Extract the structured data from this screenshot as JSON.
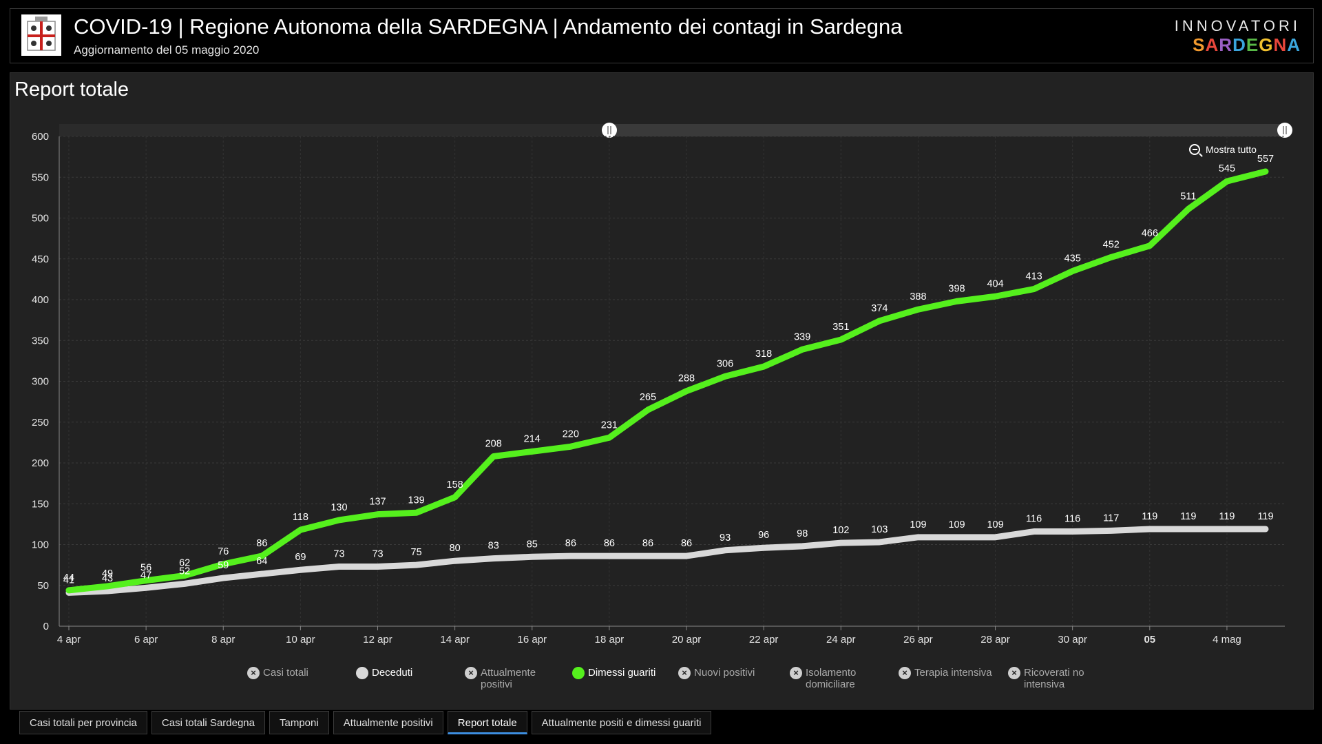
{
  "header": {
    "title": "COVID-19 | Regione Autonoma della SARDEGNA | Andamento dei contagi in Sardegna",
    "subtitle": "Aggiornamento del 05 maggio 2020",
    "brand_top": "INNOVATORI",
    "brand_bottom": "SARDEGNA",
    "brand_colors": [
      "#f29a2e",
      "#e8473b",
      "#9a5fc4",
      "#3aa5dc",
      "#58b947",
      "#f2c12e",
      "#e8473b",
      "#3aa5dc"
    ]
  },
  "panel": {
    "title": "Report totale"
  },
  "zoom": {
    "show_all_label": "Mostra tutto"
  },
  "chart_data": {
    "type": "line",
    "x": [
      "4 apr",
      "5 apr",
      "6 apr",
      "7 apr",
      "8 apr",
      "9 apr",
      "10 apr",
      "11 apr",
      "12 apr",
      "13 apr",
      "14 apr",
      "15 apr",
      "16 apr",
      "17 apr",
      "18 apr",
      "19 apr",
      "20 apr",
      "21 apr",
      "22 apr",
      "23 apr",
      "24 apr",
      "25 apr",
      "26 apr",
      "27 apr",
      "28 apr",
      "29 apr",
      "30 apr",
      "1 mag",
      "2 mag",
      "3 mag",
      "4 mag",
      "5 mag"
    ],
    "x_tick_labels": [
      "4 apr",
      "6 apr",
      "8 apr",
      "10 apr",
      "12 apr",
      "14 apr",
      "16 apr",
      "18 apr",
      "20 apr",
      "22 apr",
      "24 apr",
      "26 apr",
      "28 apr",
      "30 apr",
      "05",
      "4 mag"
    ],
    "ylim": [
      0,
      600
    ],
    "y_ticks": [
      0,
      50,
      100,
      150,
      200,
      250,
      300,
      350,
      400,
      450,
      500,
      550,
      600
    ],
    "grid": true,
    "series": [
      {
        "name": "Dimessi guariti",
        "color": "#55f01d",
        "values": [
          44,
          49,
          56,
          62,
          76,
          86,
          118,
          130,
          137,
          139,
          158,
          208,
          214,
          220,
          231,
          265,
          288,
          306,
          318,
          339,
          351,
          374,
          388,
          398,
          404,
          413,
          435,
          452,
          466,
          511,
          545,
          557
        ],
        "labels": [
          "44",
          "49",
          "56",
          "62",
          "76",
          "86",
          "118",
          "130",
          "137",
          "139",
          "158",
          "208",
          "214",
          "220",
          "231",
          "265",
          "288",
          "306",
          "318",
          "339",
          "351",
          "374",
          "388",
          "398",
          "404",
          "413",
          "435",
          "452",
          "466",
          "511",
          "545",
          "557"
        ]
      },
      {
        "name": "Deceduti",
        "color": "#d9d9d9",
        "values": [
          41,
          43,
          47,
          52,
          59,
          64,
          69,
          73,
          73,
          75,
          80,
          83,
          85,
          86,
          86,
          86,
          86,
          93,
          96,
          98,
          102,
          103,
          109,
          109,
          109,
          116,
          116,
          117,
          119,
          119,
          119,
          119
        ],
        "labels": [
          "41",
          "43",
          "47",
          "52",
          "59",
          "64",
          "69",
          "73",
          "73",
          "75",
          "80",
          "83",
          "85",
          "86",
          "86",
          "86",
          "86",
          "93",
          "96",
          "98",
          "102",
          "103",
          "109",
          "109",
          "109",
          "116",
          "116",
          "117",
          "119",
          "119",
          "119",
          "119"
        ]
      }
    ]
  },
  "legend": [
    {
      "label": "Casi totali",
      "active": false,
      "color": "#cfcfcf"
    },
    {
      "label": "Deceduti",
      "active": true,
      "color": "#d9d9d9"
    },
    {
      "label": "Attualmente positivi",
      "active": false,
      "color": "#cfcfcf"
    },
    {
      "label": "Dimessi guariti",
      "active": true,
      "color": "#55f01d"
    },
    {
      "label": "Nuovi positivi",
      "active": false,
      "color": "#cfcfcf"
    },
    {
      "label": "Isolamento domiciliare",
      "active": false,
      "color": "#cfcfcf"
    },
    {
      "label": "Terapia intensiva",
      "active": false,
      "color": "#cfcfcf"
    },
    {
      "label": "Ricoverati no intensiva",
      "active": false,
      "color": "#cfcfcf"
    }
  ],
  "tabs": [
    {
      "label": "Casi totali per provincia",
      "active": false
    },
    {
      "label": "Casi totali Sardegna",
      "active": false
    },
    {
      "label": "Tamponi",
      "active": false
    },
    {
      "label": "Attualmente positivi",
      "active": false
    },
    {
      "label": "Report totale",
      "active": true
    },
    {
      "label": "Attualmente positi e dimessi guariti",
      "active": false
    }
  ]
}
